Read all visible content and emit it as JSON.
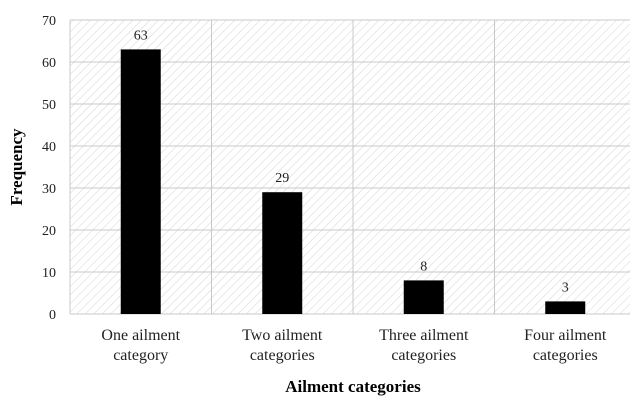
{
  "chart_data": {
    "type": "bar",
    "categories": [
      [
        "One ailment",
        "category"
      ],
      [
        "Two ailment",
        "categories"
      ],
      [
        "Three ailment",
        "categories"
      ],
      [
        "Four ailment",
        "categories"
      ]
    ],
    "values": [
      63,
      29,
      8,
      3
    ],
    "data_labels": [
      "63",
      "29",
      "8",
      "3"
    ],
    "xlabel": "Ailment categories",
    "ylabel": "Frequency",
    "ylim": [
      0,
      70
    ],
    "yticks": [
      0,
      10,
      20,
      30,
      40,
      50,
      60,
      70
    ],
    "grid": true,
    "plot_background": "hatched",
    "colors": {
      "bar": "#000000",
      "grid": "#c8c8c8",
      "hatch": "#d4d4d4",
      "text": "#222222"
    }
  }
}
